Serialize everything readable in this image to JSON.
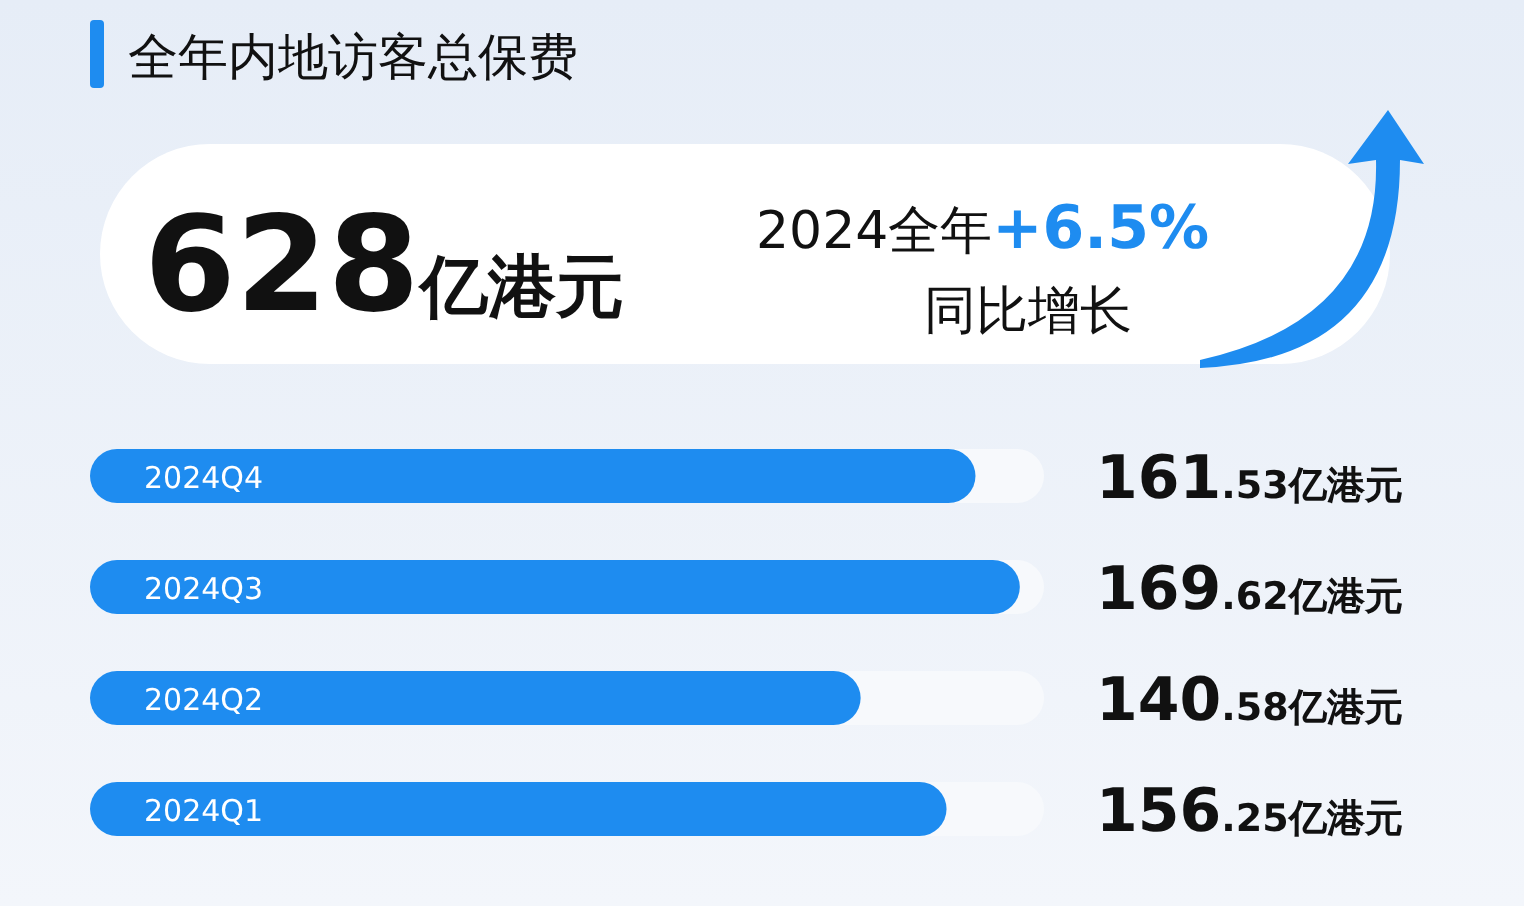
{
  "chart_data": {
    "type": "bar",
    "orientation": "horizontal",
    "title": "全年内地访客总保费",
    "annotations": [
      "628亿港元",
      "2024全年+6.5%",
      "同比增长"
    ],
    "categories": [
      "2024Q4",
      "2024Q3",
      "2024Q2",
      "2024Q1"
    ],
    "values": [
      161.53,
      169.62,
      140.58,
      156.25
    ],
    "value_labels": [
      "161.53亿港元",
      "169.62亿港元",
      "140.58亿港元",
      "156.25亿港元"
    ],
    "color": "#1e8cf0"
  }
}
